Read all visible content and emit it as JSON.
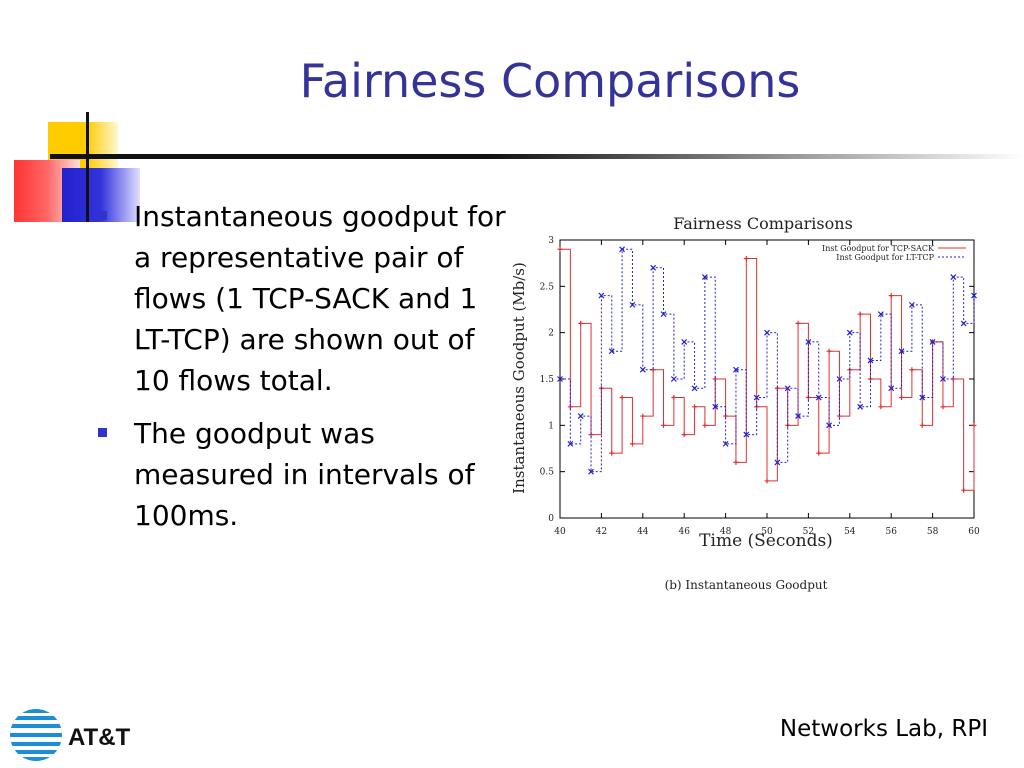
{
  "slide": {
    "title": "Fairness Comparisons",
    "bullets": [
      "Instantaneous goodput for a representative pair of flows (1 TCP-SACK and 1 LT-TCP) are shown out of 10 flows total.",
      "The goodput was measured in intervals of 100ms."
    ],
    "footer": "Networks Lab, RPI",
    "logo_text": "AT&T"
  },
  "colors": {
    "title": "#333399",
    "bullet": "#3333cc",
    "tcp_sack": "#e03030",
    "lt_tcp": "#2020d0"
  },
  "chart_data": {
    "type": "line",
    "title": "Fairness Comparisons",
    "caption": "(b) Instantaneous Goodput",
    "xlabel": "Time (Seconds)",
    "ylabel": "Instantaneous Goodput (Mb/s)",
    "xlim": [
      40,
      60
    ],
    "ylim": [
      0,
      3
    ],
    "xticks": [
      40,
      42,
      44,
      46,
      48,
      50,
      52,
      54,
      56,
      58,
      60
    ],
    "yticks": [
      0,
      0.5,
      1,
      1.5,
      2,
      2.5,
      3
    ],
    "legend_position": "top-right",
    "series": [
      {
        "name": "Inst Goodput for TCP-SACK",
        "style": "solid-plus",
        "x": [
          40.0,
          40.5,
          41.0,
          41.5,
          42.0,
          42.5,
          43.0,
          43.5,
          44.0,
          44.5,
          45.0,
          45.5,
          46.0,
          46.5,
          47.0,
          47.5,
          48.0,
          48.5,
          49.0,
          49.5,
          50.0,
          50.5,
          51.0,
          51.5,
          52.0,
          52.5,
          53.0,
          53.5,
          54.0,
          54.5,
          55.0,
          55.5,
          56.0,
          56.5,
          57.0,
          57.5,
          58.0,
          58.5,
          59.0,
          59.5,
          60.0
        ],
        "values": [
          2.9,
          1.2,
          2.1,
          0.9,
          1.4,
          0.7,
          1.3,
          0.8,
          1.1,
          1.6,
          1.0,
          1.3,
          0.9,
          1.2,
          1.0,
          1.5,
          1.1,
          0.6,
          2.8,
          1.2,
          0.4,
          1.4,
          1.0,
          2.1,
          1.3,
          0.7,
          1.8,
          1.1,
          1.6,
          2.2,
          1.5,
          1.2,
          2.4,
          1.3,
          1.6,
          1.0,
          1.9,
          1.2,
          1.5,
          0.3,
          1.0
        ]
      },
      {
        "name": "Inst Goodput for LT-TCP",
        "style": "dashed-x",
        "x": [
          40.0,
          40.5,
          41.0,
          41.5,
          42.0,
          42.5,
          43.0,
          43.5,
          44.0,
          44.5,
          45.0,
          45.5,
          46.0,
          46.5,
          47.0,
          47.5,
          48.0,
          48.5,
          49.0,
          49.5,
          50.0,
          50.5,
          51.0,
          51.5,
          52.0,
          52.5,
          53.0,
          53.5,
          54.0,
          54.5,
          55.0,
          55.5,
          56.0,
          56.5,
          57.0,
          57.5,
          58.0,
          58.5,
          59.0,
          59.5,
          60.0
        ],
        "values": [
          1.5,
          0.8,
          1.1,
          0.5,
          2.4,
          1.8,
          2.9,
          2.3,
          1.6,
          2.7,
          2.2,
          1.5,
          1.9,
          1.4,
          2.6,
          1.2,
          0.8,
          1.6,
          0.9,
          1.3,
          2.0,
          0.6,
          1.4,
          1.1,
          1.9,
          1.3,
          1.0,
          1.5,
          2.0,
          1.2,
          1.7,
          2.2,
          1.4,
          1.8,
          2.3,
          1.3,
          1.9,
          1.5,
          2.6,
          2.1,
          2.4
        ]
      }
    ]
  }
}
